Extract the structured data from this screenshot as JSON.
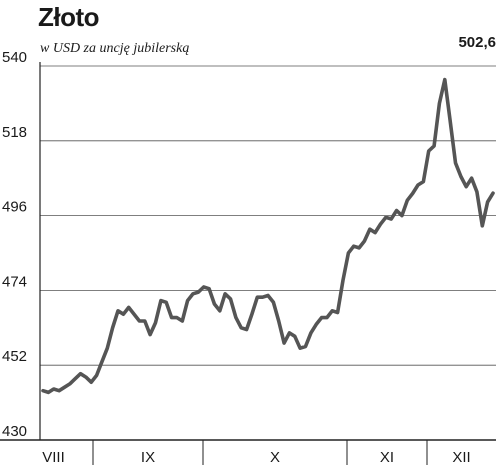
{
  "chart_data": {
    "type": "line",
    "title": "Złoto",
    "subtitle": "w USD za uncję jubilerską",
    "last_value_label": "502,6",
    "ylim": [
      430,
      540
    ],
    "yticks": [
      540,
      518,
      496,
      474,
      452,
      430
    ],
    "months": [
      "VIII",
      "IX",
      "X",
      "XI",
      "XII"
    ],
    "grid": true,
    "line_color": "#555555",
    "series": [
      {
        "values": [
          444.5,
          444,
          445,
          444.5,
          445.5,
          446.5,
          448,
          449.5,
          448.5,
          447,
          449,
          453,
          457,
          463,
          468,
          467,
          469,
          467,
          465,
          465,
          461,
          464.5,
          471,
          470.5,
          466,
          466,
          465,
          471,
          473,
          473.5,
          475,
          474.5,
          470,
          468,
          473,
          471.5,
          466,
          463,
          462.5,
          467,
          472,
          472,
          472.5,
          470.5,
          465,
          458.5,
          461.5,
          460.5,
          457,
          457.5,
          461.5,
          464,
          466,
          466,
          468,
          467.5,
          477,
          485,
          487,
          486.5,
          488.5,
          492,
          491,
          493.5,
          495.5,
          495,
          497.5,
          496,
          500.5,
          502.5,
          505,
          506,
          515,
          516.5,
          529,
          536,
          524,
          511.5,
          507.5,
          504.5,
          507,
          503,
          493,
          500,
          502.6
        ]
      }
    ]
  }
}
